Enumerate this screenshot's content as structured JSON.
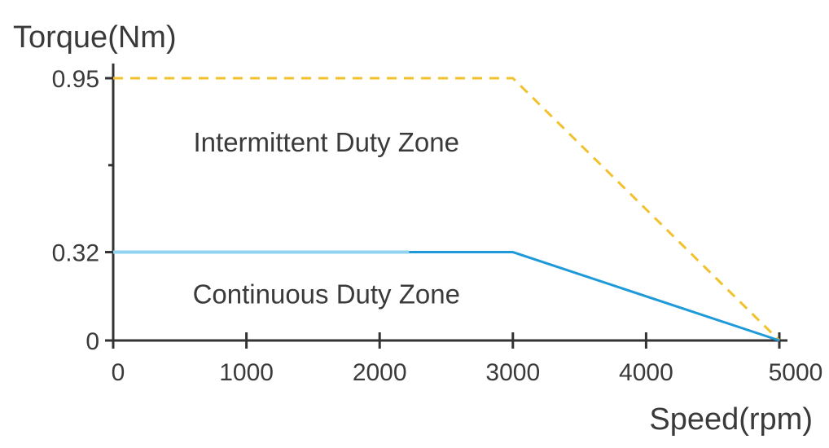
{
  "chart_data": {
    "type": "line",
    "title": "",
    "xlabel": "Speed(rpm)",
    "ylabel": "Torque(Nm)",
    "xlim": [
      0,
      5000
    ],
    "ylim": [
      0,
      0.95
    ],
    "x_ticks": [
      0,
      1000,
      2000,
      3000,
      4000,
      5000
    ],
    "x_tick_labels": [
      "0",
      "1000",
      "2000",
      "3000",
      "4000",
      "5000"
    ],
    "y_ticks": [
      0,
      0.32,
      0.95
    ],
    "y_tick_labels": [
      "0",
      "0.32",
      "0.95"
    ],
    "grid": false,
    "legend": "none",
    "series": [
      {
        "x": [
          0,
          3000,
          5000
        ],
        "y": [
          0.95,
          0.95,
          0
        ],
        "style": "dashed",
        "color": "#f2c12e"
      },
      {
        "x": [
          0,
          3000,
          5000
        ],
        "y": [
          0.32,
          0.32,
          0
        ],
        "style": "solid",
        "color": "#1f9ad8",
        "light_color": "#8fd3f1"
      }
    ],
    "annotations": [
      {
        "text": "Intermittent Duty Zone",
        "x": 1600,
        "y": 0.72
      },
      {
        "text": "Continuous Duty Zone",
        "x": 1600,
        "y": 0.17
      }
    ]
  }
}
